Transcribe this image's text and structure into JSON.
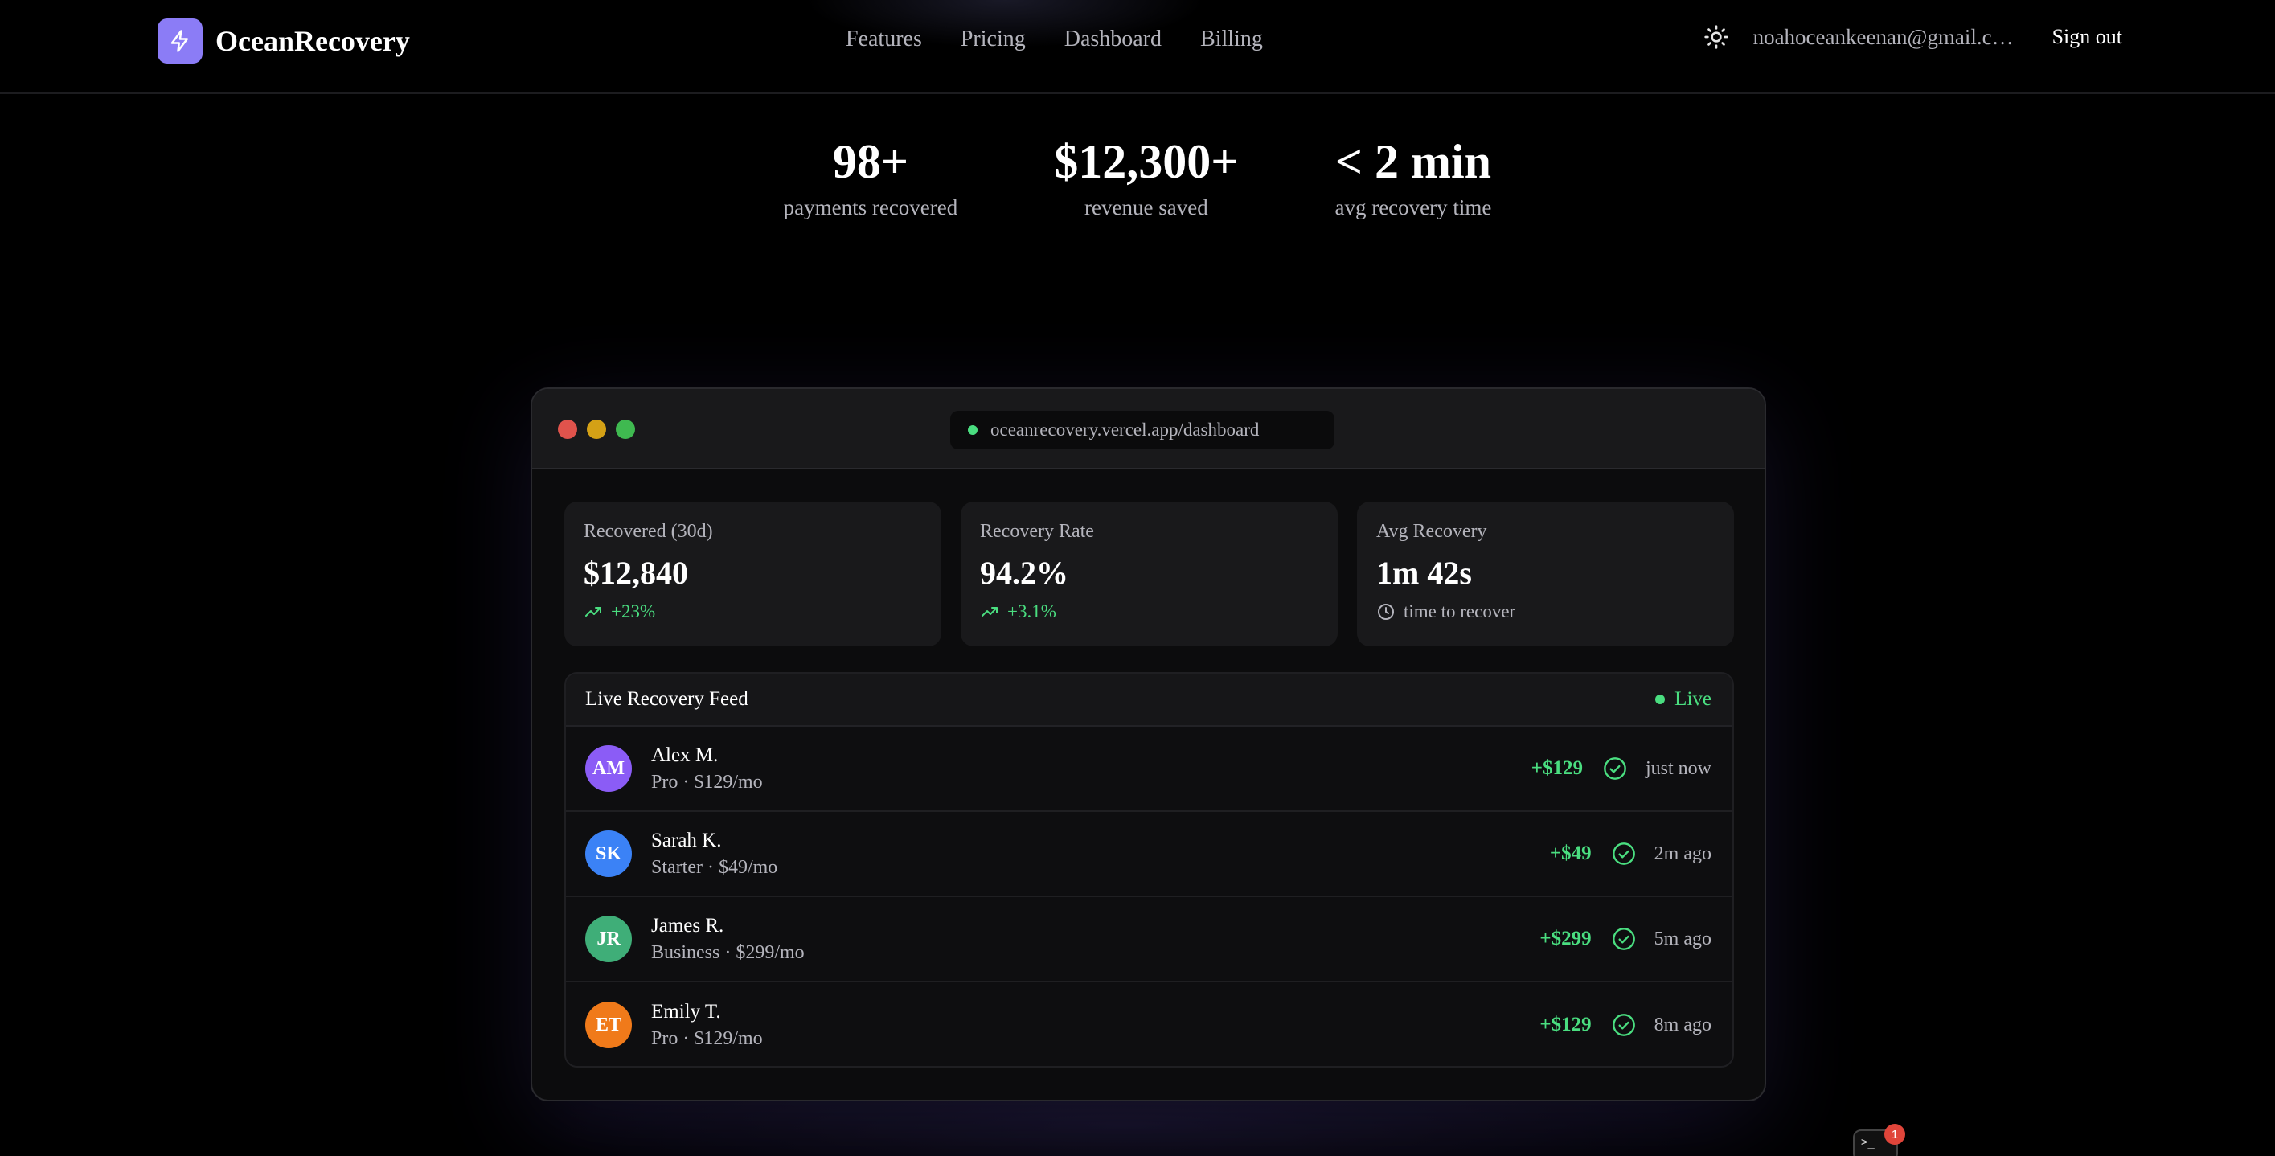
{
  "header": {
    "brand": "OceanRecovery",
    "nav": [
      "Features",
      "Pricing",
      "Dashboard",
      "Billing"
    ],
    "email": "noahoceankeenan@gmail.com",
    "sign_out": "Sign out",
    "theme_icon": "sun-icon",
    "logo_icon": "lightning-icon"
  },
  "stats": [
    {
      "value": "98+",
      "label": "payments recovered"
    },
    {
      "value": "$12,300+",
      "label": "revenue saved"
    },
    {
      "value": "< 2 min",
      "label": "avg recovery time"
    }
  ],
  "window": {
    "url": "oceanrecovery.vercel.app/dashboard",
    "dots": [
      "#e0534c",
      "#d4a116",
      "#3fb950"
    ]
  },
  "cards": [
    {
      "title": "Recovered (30d)",
      "value": "$12,840",
      "sub": "+23%",
      "icon": "trending-up-icon"
    },
    {
      "title": "Recovery Rate",
      "value": "94.2%",
      "sub": "+3.1%",
      "icon": "trending-up-icon"
    },
    {
      "title": "Avg Recovery",
      "value": "1m 42s",
      "sub": "time to recover",
      "icon": "clock-icon"
    }
  ],
  "feed": {
    "title": "Live Recovery Feed",
    "status": "Live",
    "rows": [
      {
        "initials": "AM",
        "name": "Alex M.",
        "plan": "Pro · $129/mo",
        "amount": "+$129",
        "time": "just now",
        "color": "#8b5cf6"
      },
      {
        "initials": "SK",
        "name": "Sarah K.",
        "plan": "Starter · $49/mo",
        "amount": "+$49",
        "time": "2m ago",
        "color": "#3b82f6"
      },
      {
        "initials": "JR",
        "name": "James R.",
        "plan": "Business · $299/mo",
        "amount": "+$299",
        "time": "5m ago",
        "color": "#3fae78"
      },
      {
        "initials": "ET",
        "name": "Emily T.",
        "plan": "Pro · $129/mo",
        "amount": "+$129",
        "time": "8m ago",
        "color": "#f07a1a"
      }
    ]
  },
  "terminal": {
    "label": ">_",
    "badge": "1"
  },
  "colors": {
    "accent": "#8b7cf6",
    "success": "#4ade80",
    "background": "#000000"
  }
}
